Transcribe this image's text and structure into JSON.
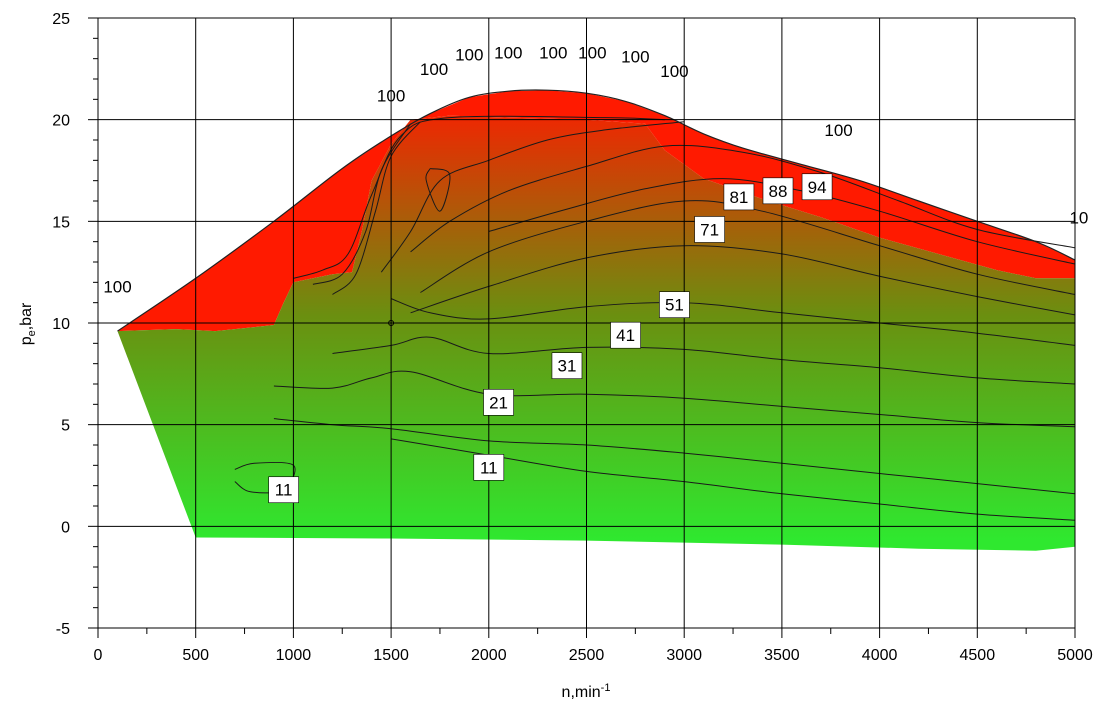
{
  "chart_data": {
    "type": "heatmap",
    "subtype": "contour",
    "xlabel": "n,min",
    "xlabel_sup": "-1",
    "ylabel": "p",
    "ylabel_sub": "e",
    "ylabel_suffix": ",bar",
    "xlim": [
      0,
      5000
    ],
    "ylim": [
      -5,
      25
    ],
    "x_major": [
      0,
      500,
      1000,
      1500,
      2000,
      2500,
      3000,
      3500,
      4000,
      4500,
      5000
    ],
    "x_tick_labels": [
      "0",
      "500",
      "1000",
      "1500",
      "2000",
      "2500",
      "3000",
      "3500",
      "4000",
      "4500",
      "5000"
    ],
    "y_major": [
      -5,
      0,
      5,
      10,
      15,
      20,
      25
    ],
    "y_tick_labels": [
      "-5",
      "0",
      "5",
      "10",
      "15",
      "20",
      "25"
    ],
    "grid": true,
    "colormap": {
      "low": "#2fe82f",
      "mid": "#6b8f10",
      "high": "#ff1a00"
    },
    "outline": {
      "upper": [
        [
          100,
          9.6
        ],
        [
          500,
          12.2
        ],
        [
          900,
          15
        ],
        [
          1250,
          17.6
        ],
        [
          1500,
          19.2
        ],
        [
          1700,
          20.3
        ],
        [
          1900,
          21.1
        ],
        [
          2100,
          21.4
        ],
        [
          2300,
          21.45
        ],
        [
          2500,
          21.3
        ],
        [
          2700,
          20.9
        ],
        [
          2900,
          20.2
        ],
        [
          3100,
          19.3
        ],
        [
          3300,
          18.6
        ],
        [
          3600,
          17.8
        ],
        [
          3900,
          17
        ],
        [
          4200,
          16
        ],
        [
          4500,
          15
        ],
        [
          4800,
          14
        ],
        [
          5000,
          13.1
        ]
      ],
      "red_lower": [
        [
          5000,
          12.2
        ],
        [
          4800,
          12.2
        ],
        [
          4600,
          12.6
        ],
        [
          4300,
          13.4
        ],
        [
          4000,
          14.2
        ],
        [
          3700,
          15.2
        ],
        [
          3400,
          16.1
        ],
        [
          3100,
          17.1
        ],
        [
          2900,
          18.5
        ],
        [
          2800,
          19.8
        ],
        [
          2500,
          20
        ],
        [
          2100,
          20.1
        ],
        [
          1800,
          20.2
        ],
        [
          1600,
          20
        ],
        [
          1500,
          18.8
        ],
        [
          1400,
          17
        ],
        [
          1350,
          14.5
        ],
        [
          1300,
          12.5
        ],
        [
          1200,
          12.4
        ],
        [
          1000,
          12
        ],
        [
          950,
          11
        ],
        [
          900,
          9.9
        ],
        [
          800,
          9.8
        ],
        [
          600,
          9.6
        ],
        [
          400,
          9.7
        ],
        [
          100,
          9.6
        ]
      ],
      "lower": [
        [
          100,
          9.6
        ],
        [
          500,
          -0.55
        ],
        [
          1500,
          -0.6
        ],
        [
          2500,
          -0.7
        ],
        [
          3500,
          -0.9
        ],
        [
          4200,
          -1.1
        ],
        [
          4800,
          -1.2
        ],
        [
          5000,
          -1
        ]
      ]
    },
    "contours": [
      [
        [
          1000,
          12.2
        ],
        [
          1150,
          12.6
        ],
        [
          1280,
          13.4
        ],
        [
          1400,
          16.3
        ],
        [
          1550,
          19.2
        ],
        [
          1800,
          20.1
        ],
        [
          2600,
          20.1
        ],
        [
          2900,
          20
        ]
      ],
      [
        [
          1100,
          11.9
        ],
        [
          1250,
          12.4
        ],
        [
          1370,
          14.5
        ],
        [
          1450,
          17.5
        ],
        [
          1600,
          19.8
        ]
      ],
      [
        [
          1200,
          11.4
        ],
        [
          1320,
          12.4
        ],
        [
          1420,
          15.5
        ],
        [
          1500,
          18.2
        ],
        [
          1650,
          19.9
        ]
      ],
      [
        [
          1450,
          12.5
        ],
        [
          1600,
          14.5
        ],
        [
          1750,
          17
        ],
        [
          2000,
          18
        ],
        [
          2300,
          19
        ],
        [
          2600,
          19.5
        ],
        [
          3000,
          19.9
        ]
      ],
      [
        [
          1600,
          13.5
        ],
        [
          1800,
          15
        ],
        [
          2100,
          16.5
        ],
        [
          2500,
          17.7
        ],
        [
          2900,
          18.7
        ],
        [
          3300,
          18.4
        ],
        [
          3700,
          17.4
        ],
        [
          4100,
          16
        ],
        [
          4500,
          14.6
        ],
        [
          5000,
          13.7
        ]
      ],
      [
        [
          2000,
          14.5
        ],
        [
          2400,
          15.6
        ],
        [
          2800,
          16.6
        ],
        [
          3200,
          17.1
        ],
        [
          3600,
          16.5
        ],
        [
          4000,
          15.5
        ],
        [
          4500,
          14
        ],
        [
          5000,
          12.9
        ]
      ],
      [
        [
          1650,
          11.5
        ],
        [
          2000,
          13.5
        ],
        [
          2500,
          15
        ],
        [
          3000,
          16
        ],
        [
          3400,
          15.5
        ],
        [
          4000,
          13.8
        ],
        [
          4500,
          12.4
        ],
        [
          5000,
          11.4
        ]
      ],
      [
        [
          1600,
          10.5
        ],
        [
          2000,
          11.8
        ],
        [
          2500,
          13.2
        ],
        [
          3000,
          13.8
        ],
        [
          3500,
          13.4
        ],
        [
          4000,
          12.3
        ],
        [
          4500,
          11.3
        ],
        [
          5000,
          10.4
        ]
      ],
      [
        [
          1500,
          11.2
        ],
        [
          1700,
          10.5
        ],
        [
          2000,
          10.2
        ],
        [
          2500,
          10.8
        ],
        [
          3000,
          11
        ],
        [
          3500,
          10.5
        ],
        [
          4000,
          10
        ],
        [
          4500,
          9.5
        ],
        [
          5000,
          8.9
        ]
      ],
      [
        [
          1200,
          8.5
        ],
        [
          1500,
          8.9
        ],
        [
          1700,
          9.3
        ],
        [
          2000,
          8.5
        ],
        [
          2500,
          8.8
        ],
        [
          3000,
          8.7
        ],
        [
          3500,
          8.2
        ],
        [
          4000,
          7.8
        ],
        [
          4500,
          7.3
        ],
        [
          5000,
          7
        ]
      ],
      [
        [
          900,
          6.9
        ],
        [
          1200,
          6.8
        ],
        [
          1400,
          7.3
        ],
        [
          1600,
          7.6
        ],
        [
          2000,
          6.5
        ],
        [
          2500,
          6.5
        ],
        [
          3000,
          6.3
        ],
        [
          3500,
          5.9
        ],
        [
          4000,
          5.5
        ],
        [
          4500,
          5.1
        ],
        [
          5000,
          4.9
        ]
      ],
      [
        [
          900,
          5.3
        ],
        [
          1200,
          5
        ],
        [
          1500,
          4.8
        ],
        [
          2000,
          4.2
        ],
        [
          2500,
          4
        ],
        [
          3000,
          3.6
        ],
        [
          3500,
          3.1
        ],
        [
          4000,
          2.6
        ],
        [
          4500,
          2.1
        ],
        [
          5000,
          1.6
        ]
      ],
      [
        [
          1500,
          4.3
        ],
        [
          2000,
          3.5
        ],
        [
          2500,
          2.7
        ],
        [
          3000,
          2.2
        ],
        [
          3500,
          1.6
        ],
        [
          4000,
          1.1
        ],
        [
          4500,
          0.6
        ],
        [
          5000,
          0.3
        ]
      ],
      [
        [
          700,
          2.8
        ],
        [
          800,
          3.1
        ],
        [
          1000,
          3
        ],
        [
          950,
          1.8
        ],
        [
          780,
          1.7
        ],
        [
          700,
          2.2
        ]
      ],
      [
        [
          1700,
          17.6
        ],
        [
          1800,
          17.3
        ],
        [
          1750,
          15.5
        ],
        [
          1680,
          17
        ],
        [
          1700,
          17.6
        ]
      ]
    ],
    "contour_labels": [
      {
        "text": "11",
        "x": 950,
        "y": 1.8,
        "boxed": true
      },
      {
        "text": "11",
        "x": 2000,
        "y": 2.9,
        "boxed": true
      },
      {
        "text": "21",
        "x": 2050,
        "y": 6.1,
        "boxed": true
      },
      {
        "text": "31",
        "x": 2400,
        "y": 7.9,
        "boxed": true
      },
      {
        "text": "41",
        "x": 2700,
        "y": 9.4,
        "boxed": true
      },
      {
        "text": "51",
        "x": 2950,
        "y": 10.9,
        "boxed": true
      },
      {
        "text": "71",
        "x": 3130,
        "y": 14.6,
        "boxed": true
      },
      {
        "text": "81",
        "x": 3280,
        "y": 16.2,
        "boxed": true
      },
      {
        "text": "88",
        "x": 3480,
        "y": 16.5,
        "boxed": true
      },
      {
        "text": "94",
        "x": 3680,
        "y": 16.7,
        "boxed": true
      },
      {
        "text": "100",
        "x": 100,
        "y": 11.8,
        "boxed": false
      },
      {
        "text": "100",
        "x": 1500,
        "y": 21.2,
        "boxed": false
      },
      {
        "text": "100",
        "x": 1720,
        "y": 22.5,
        "boxed": false
      },
      {
        "text": "100",
        "x": 1900,
        "y": 23.2,
        "boxed": false
      },
      {
        "text": "100",
        "x": 2100,
        "y": 23.3,
        "boxed": false
      },
      {
        "text": "100",
        "x": 2330,
        "y": 23.3,
        "boxed": false
      },
      {
        "text": "100",
        "x": 2530,
        "y": 23.3,
        "boxed": false
      },
      {
        "text": "100",
        "x": 2750,
        "y": 23.1,
        "boxed": false
      },
      {
        "text": "100",
        "x": 2950,
        "y": 22.4,
        "boxed": false
      },
      {
        "text": "100",
        "x": 3790,
        "y": 19.5,
        "boxed": false
      },
      {
        "text": "10",
        "x": 5020,
        "y": 15.2,
        "boxed": false
      }
    ]
  }
}
